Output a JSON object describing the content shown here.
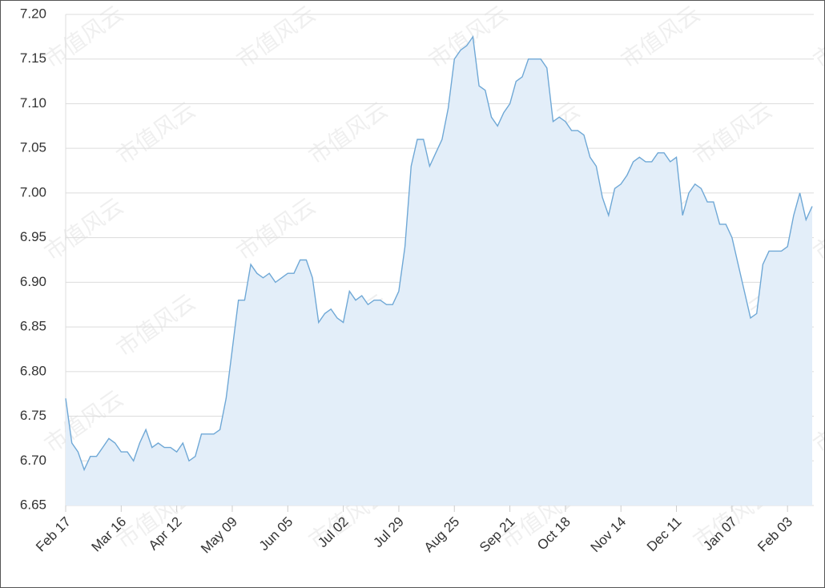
{
  "chart_data": {
    "type": "area",
    "watermark": "市值风云",
    "categories": [
      "Feb 17",
      null,
      null,
      null,
      null,
      null,
      null,
      null,
      null,
      "Mar 16",
      null,
      null,
      null,
      null,
      null,
      null,
      null,
      null,
      "Apr 12",
      null,
      null,
      null,
      null,
      null,
      null,
      null,
      null,
      "May 09",
      null,
      null,
      null,
      null,
      null,
      null,
      null,
      null,
      "Jun 05",
      null,
      null,
      null,
      null,
      null,
      null,
      null,
      null,
      "Jul 02",
      null,
      null,
      null,
      null,
      null,
      null,
      null,
      null,
      "Jul 29",
      null,
      null,
      null,
      null,
      null,
      null,
      null,
      null,
      "Aug 25",
      null,
      null,
      null,
      null,
      null,
      null,
      null,
      null,
      "Sep 21",
      null,
      null,
      null,
      null,
      null,
      null,
      null,
      null,
      "Oct 18",
      null,
      null,
      null,
      null,
      null,
      null,
      null,
      null,
      "Nov 14",
      null,
      null,
      null,
      null,
      null,
      null,
      null,
      null,
      "Dec 11",
      null,
      null,
      null,
      null,
      null,
      null,
      null,
      null,
      "Jan 07",
      null,
      null,
      null,
      null,
      null,
      null,
      null,
      null,
      "Feb 03",
      null,
      null,
      null,
      null
    ],
    "values": [
      6.77,
      6.72,
      6.71,
      6.69,
      6.705,
      6.705,
      6.715,
      6.725,
      6.72,
      6.71,
      6.71,
      6.7,
      6.72,
      6.735,
      6.715,
      6.72,
      6.715,
      6.715,
      6.71,
      6.72,
      6.7,
      6.705,
      6.73,
      6.73,
      6.73,
      6.735,
      6.77,
      6.825,
      6.88,
      6.88,
      6.92,
      6.91,
      6.905,
      6.91,
      6.9,
      6.905,
      6.91,
      6.91,
      6.925,
      6.925,
      6.905,
      6.855,
      6.865,
      6.87,
      6.86,
      6.855,
      6.89,
      6.88,
      6.885,
      6.875,
      6.88,
      6.88,
      6.875,
      6.875,
      6.89,
      6.94,
      7.03,
      7.06,
      7.06,
      7.03,
      7.045,
      7.06,
      7.095,
      7.15,
      7.16,
      7.165,
      7.175,
      7.12,
      7.115,
      7.085,
      7.075,
      7.09,
      7.1,
      7.125,
      7.13,
      7.15,
      7.15,
      7.15,
      7.14,
      7.08,
      7.085,
      7.08,
      7.07,
      7.07,
      7.065,
      7.04,
      7.03,
      6.995,
      6.975,
      7.005,
      7.01,
      7.02,
      7.035,
      7.04,
      7.035,
      7.035,
      7.045,
      7.045,
      7.035,
      7.04,
      6.975,
      7.0,
      7.01,
      7.005,
      6.99,
      6.99,
      6.965,
      6.965,
      6.95,
      6.92,
      6.89,
      6.86,
      6.865,
      6.92,
      6.935,
      6.935,
      6.935,
      6.94,
      6.975,
      7.0,
      6.97,
      6.985
    ],
    "color": "#6fa8d6",
    "fill": "#e3eef9",
    "ylim": [
      6.65,
      7.2
    ],
    "yticks": [
      6.65,
      {
        "value": 6.7,
        "label": "6.70"
      },
      6.75,
      {
        "value": 6.8,
        "label": "6.80"
      },
      6.85,
      {
        "value": 6.9,
        "label": "6.90"
      },
      6.95,
      {
        "value": 7.0,
        "label": "7.00"
      },
      7.05,
      {
        "value": 7.1,
        "label": "7.10"
      },
      7.15,
      {
        "value": 7.2,
        "label": "7.20"
      }
    ],
    "grid": true
  }
}
